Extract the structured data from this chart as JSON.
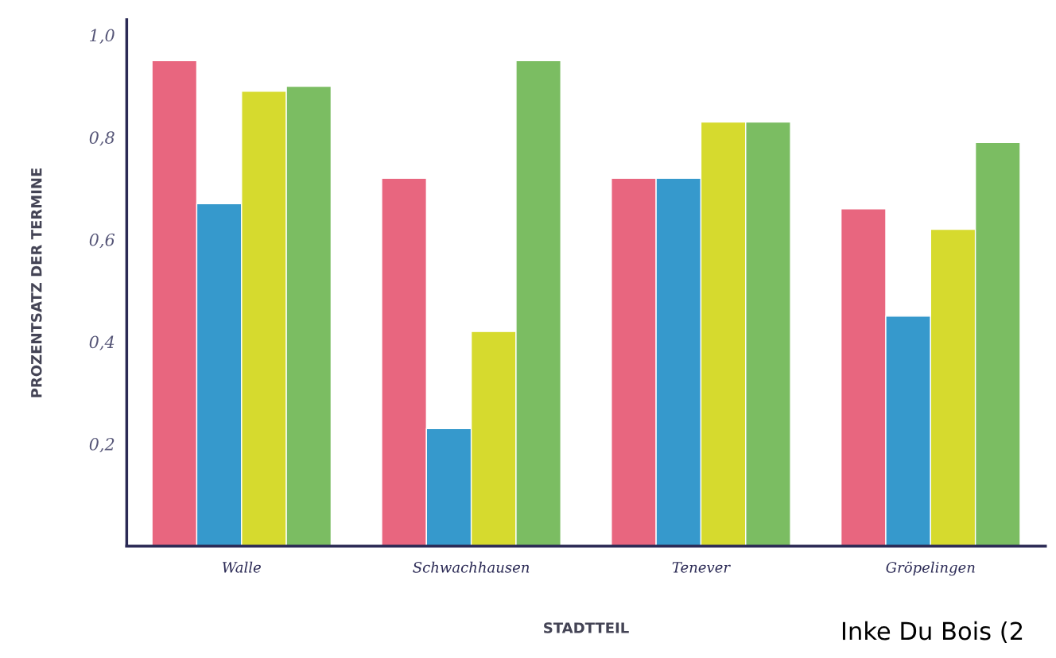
{
  "chart_data": {
    "type": "bar",
    "xlabel": "STADTTEIL",
    "ylabel": "PROZENTSATZ DER TERMINE",
    "categories": [
      "Walle",
      "Schwachhausen",
      "Tenever",
      "Gröpelingen"
    ],
    "series": [
      {
        "color": "#e8667f",
        "values": [
          0.95,
          0.72,
          0.72,
          0.66
        ]
      },
      {
        "color": "#3699cc",
        "values": [
          0.67,
          0.23,
          0.72,
          0.45
        ]
      },
      {
        "color": "#d6da2e",
        "values": [
          0.89,
          0.42,
          0.83,
          0.62
        ]
      },
      {
        "color": "#7bbd62",
        "values": [
          0.9,
          0.95,
          0.83,
          0.79
        ]
      }
    ],
    "ylim": [
      0,
      1.03
    ],
    "yticks": [
      {
        "value": 0.2,
        "label": "0,2"
      },
      {
        "value": 0.4,
        "label": "0,4"
      },
      {
        "value": 0.6,
        "label": "0,6"
      },
      {
        "value": 0.8,
        "label": "0,8"
      },
      {
        "value": 1.0,
        "label": "1,0"
      }
    ],
    "grid": false,
    "legend": false,
    "annotations": [
      "Inke Du Bois (2"
    ]
  }
}
